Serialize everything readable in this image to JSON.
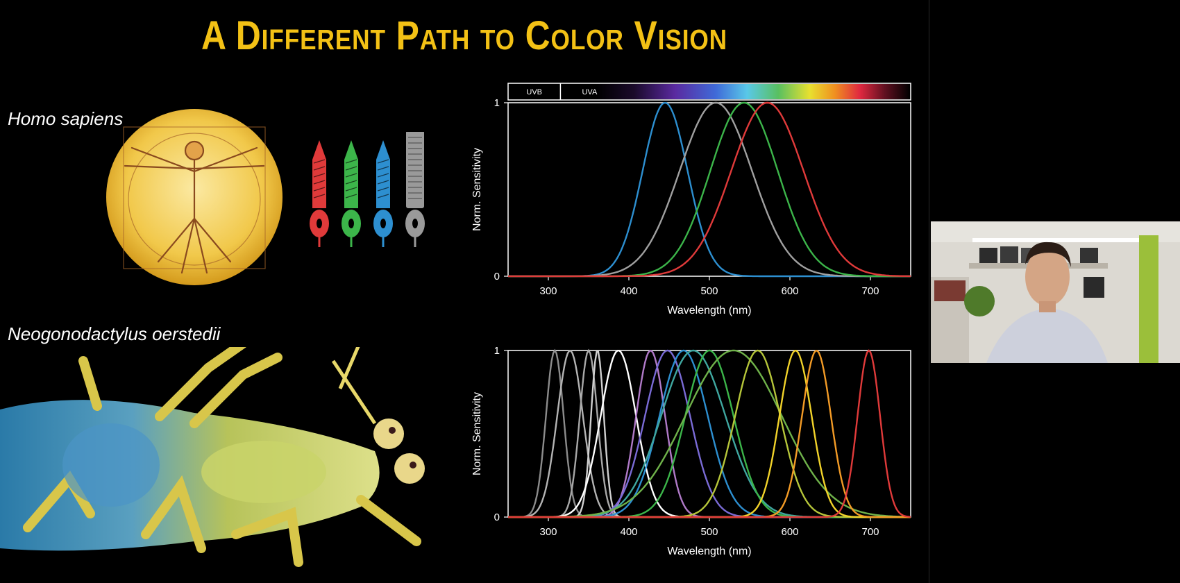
{
  "slide": {
    "title": "A Different Path to Color Vision",
    "species_human": "Homo sapiens",
    "species_shrimp": "Neogonodactylus oerstedii"
  },
  "icons": [
    "vitruvian-man-image",
    "photoreceptor-cone-icons",
    "mantis-shrimp-image",
    "presenter-webcam"
  ],
  "colors": {
    "title": "#f3c115",
    "cone_red": "#e03a3a",
    "cone_green": "#3cb54a",
    "cone_blue": "#2d8fd0",
    "rod_gray": "#9a9a9a"
  },
  "chart_data": [
    {
      "type": "line",
      "spectrum_bar": {
        "labels": [
          "UVB",
          "UVA"
        ]
      },
      "xlabel": "Wavelength (nm)",
      "ylabel": "Norm. Sensitivity",
      "xlim": [
        250,
        750
      ],
      "ylim": [
        0,
        1
      ],
      "xticks": [
        300,
        400,
        500,
        600,
        700
      ],
      "yticks": [
        0,
        1
      ],
      "series": [
        {
          "color": "#2d8fd0",
          "peak": 445,
          "width": 28
        },
        {
          "color": "#a0a0a0",
          "peak": 508,
          "width": 45
        },
        {
          "color": "#3cb54a",
          "peak": 543,
          "width": 42
        },
        {
          "color": "#e03a3a",
          "peak": 572,
          "width": 45
        }
      ]
    },
    {
      "type": "line",
      "xlabel": "Wavelength (nm)",
      "ylabel": "Norm. Sensitivity",
      "xlim": [
        250,
        750
      ],
      "ylim": [
        0,
        1
      ],
      "xticks": [
        300,
        400,
        500,
        600,
        700
      ],
      "yticks": [
        0,
        1
      ],
      "series": [
        {
          "color": "#8c8c8c",
          "peak": 308,
          "width": 11
        },
        {
          "color": "#b4b4b4",
          "peak": 327,
          "width": 16
        },
        {
          "color": "#a8a8a8",
          "peak": 350,
          "width": 11
        },
        {
          "color": "#d0d0d0",
          "peak": 361,
          "width": 8
        },
        {
          "color": "#ffffff",
          "peak": 387,
          "width": 22
        },
        {
          "color": "#b07ac8",
          "peak": 427,
          "width": 18
        },
        {
          "color": "#7a6bd6",
          "peak": 448,
          "width": 28
        },
        {
          "color": "#2d8fd0",
          "peak": 468,
          "width": 30
        },
        {
          "color": "#3fa7a0",
          "peak": 480,
          "width": 40
        },
        {
          "color": "#3cb54a",
          "peak": 500,
          "width": 30
        },
        {
          "color": "#6fb24a",
          "peak": 530,
          "width": 60
        },
        {
          "color": "#b6c63a",
          "peak": 560,
          "width": 28
        },
        {
          "color": "#f2d32a",
          "peak": 607,
          "width": 20
        },
        {
          "color": "#f39b26",
          "peak": 633,
          "width": 18
        },
        {
          "color": "#e03a3a",
          "peak": 698,
          "width": 14
        }
      ]
    }
  ]
}
